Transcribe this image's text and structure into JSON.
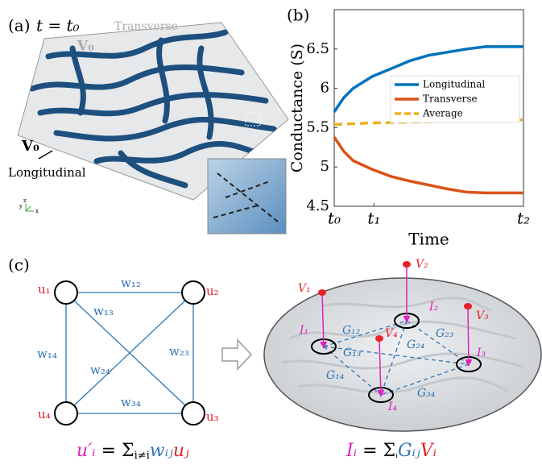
{
  "panel_a": {
    "label": "(a)",
    "time": "t = t₀",
    "transverse": "Transverse",
    "v_top": "V₀",
    "v_left": "V₀",
    "longitudinal": "Longitudinal",
    "axes": [
      "y",
      "z",
      "x"
    ]
  },
  "chart_data": {
    "type": "line",
    "label": "(b)",
    "ylabel": "Conductance (S)",
    "xlabel": "Time",
    "x": [
      0,
      0.05,
      0.1,
      0.2,
      0.3,
      0.4,
      0.5,
      0.6,
      0.7,
      0.8,
      0.9,
      1
    ],
    "series": [
      {
        "name": "Longitudinal",
        "color": "#0072bd",
        "values": [
          5.7,
          5.88,
          6.0,
          6.15,
          6.25,
          6.35,
          6.42,
          6.46,
          6.5,
          6.53,
          6.53,
          6.53
        ]
      },
      {
        "name": "Transverse",
        "color": "#d95319",
        "values": [
          5.38,
          5.2,
          5.08,
          4.97,
          4.88,
          4.82,
          4.77,
          4.72,
          4.68,
          4.67,
          4.67,
          4.67
        ]
      },
      {
        "name": "Average",
        "color": "#edb120",
        "dashed": true,
        "values": [
          5.54,
          5.545,
          5.55,
          5.56,
          5.565,
          5.57,
          5.575,
          5.58,
          5.585,
          5.59,
          5.595,
          5.6
        ]
      }
    ],
    "xlim": [
      0,
      1
    ],
    "xticks": [
      {
        "value": 0,
        "label": "t₀"
      },
      {
        "value": 0.21,
        "label": "t₁"
      },
      {
        "value": 1,
        "label": "t₂"
      }
    ],
    "ylim": [
      4.5,
      7.0
    ],
    "yticks": [
      4.5,
      5,
      5.5,
      6,
      6.5
    ],
    "legend": "right"
  },
  "panel_c": {
    "label": "(c)",
    "nodes": [
      "u₁",
      "u₂",
      "u₃",
      "u₄"
    ],
    "edges": [
      "w₁₂",
      "w₁₃",
      "w₁₄",
      "w₂₃",
      "w₂₄",
      "w₃₄"
    ],
    "formula_left": [
      "u′ᵢ",
      " = Σ",
      "i≠i",
      "wᵢⱼ",
      "uⱼ"
    ],
    "voltages": [
      "V₁",
      "V₂",
      "V₃",
      "V₄"
    ],
    "currents": [
      "I₁",
      "I₂",
      "I₃",
      "I₄"
    ],
    "conductances": [
      "G₁₂",
      "G₁₃",
      "G₁₄",
      "G₂₃",
      "G₂₄",
      "G₃₄"
    ],
    "formula_right": [
      "Iᵢ",
      " = Σ",
      "ᵢ",
      "Gᵢⱼ",
      "Vᵢ"
    ]
  }
}
